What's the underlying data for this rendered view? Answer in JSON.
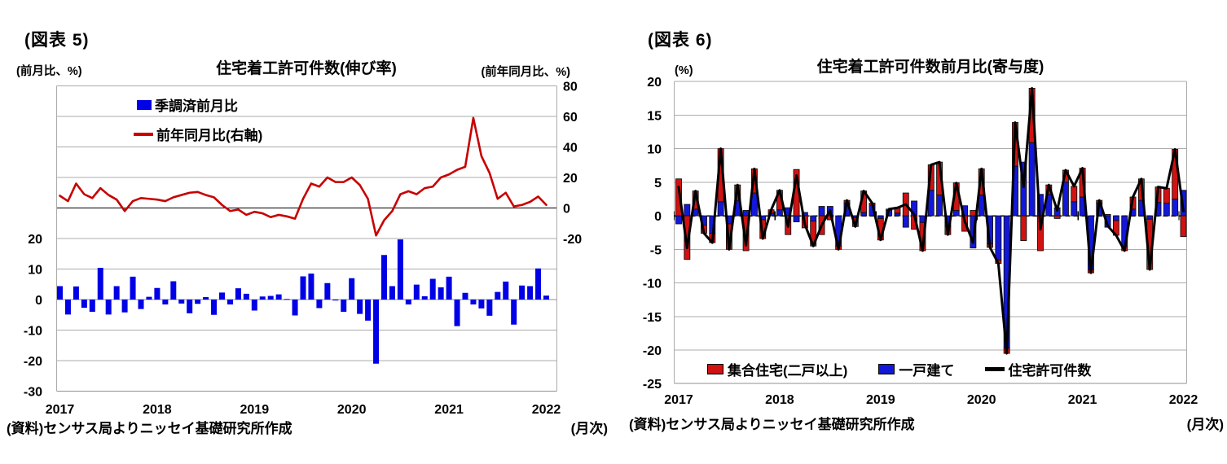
{
  "panels": {
    "fig5": {
      "tag": "(図表 5)",
      "axis_top_left": "(前月比、%)",
      "title": "住宅着工許可件数(伸び率)",
      "axis_top_right": "(前年同月比、%)",
      "legend": {
        "bar": "季調済前月比",
        "line": "前年同月比(右軸)"
      },
      "source": "(資料)センサス局よりニッセイ基礎研究所作成",
      "freq": "(月次)"
    },
    "fig6": {
      "tag": "(図表 6)",
      "axis_unit": "(%)",
      "title": "住宅着工許可件数前月比(寄与度)",
      "legend": {
        "multi": "集合住宅(二戸以上)",
        "single": "一戸建て",
        "total": "住宅許可件数"
      },
      "source": "(資料)センサス局よりニッセイ基礎研究所作成",
      "freq": "(月次)"
    }
  },
  "colors": {
    "bar_blue": "#0000E6",
    "line_red": "#C80000",
    "multi_red": "#D01212",
    "single_blue": "#1318D8",
    "line_black": "#000000",
    "grid": "#ABABAB",
    "grid_dark": "#909090"
  },
  "chart_data": [
    {
      "id": "fig5",
      "type": "bar+line",
      "title": "住宅着工許可件数(伸び率)",
      "x_monthly_range": "2017-01 to 2022-01",
      "years": [
        "2017",
        "2018",
        "2019",
        "2020",
        "2021",
        "2022"
      ],
      "left_axis": {
        "label": "(前月比、%)",
        "ticks": [
          20,
          10,
          0,
          -10,
          -20,
          -30
        ],
        "range": [
          -30,
          70
        ]
      },
      "right_axis": {
        "label": "(前年同月比、%)",
        "ticks": [
          80,
          60,
          40,
          20,
          0,
          -20
        ],
        "range": [
          -120,
          80
        ]
      },
      "series": [
        {
          "name": "季調済前月比",
          "type": "bar",
          "axis": "left",
          "color": "#0000E6",
          "values": [
            4.4,
            -4.9,
            4.3,
            -2.7,
            -4,
            10.4,
            -4.9,
            4.4,
            -4.2,
            7.5,
            -3.1,
            0.9,
            3.8,
            -1.6,
            6,
            -1.3,
            -4.5,
            -1.4,
            0.8,
            -5,
            2.3,
            -1.6,
            3.7,
            1.9,
            -3.6,
            1,
            1.2,
            1.7,
            0.2,
            -5.2,
            7.6,
            8.5,
            -2.8,
            5.4,
            -0.3,
            -4,
            7,
            -4.7,
            -6.9,
            -21,
            14.6,
            4.4,
            19.7,
            -1.6,
            4.9,
            1.1,
            6.8,
            4,
            7.5,
            -8.7,
            2.2,
            -1.6,
            -2.9,
            -5.3,
            2.5,
            5.9,
            -8.2,
            4.6,
            4.4,
            10.2,
            1.3
          ]
        },
        {
          "name": "前年同月比(右軸)",
          "type": "line",
          "axis": "right",
          "color": "#C80000",
          "values": [
            8,
            4.5,
            16,
            9,
            6.5,
            13,
            8.5,
            5.5,
            -2,
            4.5,
            6.5,
            6,
            5.5,
            4.5,
            7,
            8.5,
            10,
            10.5,
            8.5,
            7,
            2,
            -2,
            -1,
            -4.5,
            -2.5,
            -3.5,
            -6,
            -4.5,
            -5.5,
            -7,
            6,
            16,
            14,
            20,
            17,
            17,
            20,
            15,
            6,
            -18,
            -8,
            -2,
            9,
            11,
            9,
            13,
            14,
            20,
            22,
            25,
            27,
            59,
            34,
            23,
            6,
            10,
            1,
            2,
            4,
            7.5,
            2
          ]
        }
      ]
    },
    {
      "id": "fig6",
      "type": "stacked-bar+line",
      "title": "住宅着工許可件数前月比(寄与度)",
      "x_monthly_range": "2017-01 to 2022-01",
      "years": [
        "2017",
        "2018",
        "2019",
        "2020",
        "2021",
        "2022"
      ],
      "y_axis": {
        "label": "(%)",
        "ticks": [
          20,
          15,
          10,
          5,
          0,
          -5,
          -10,
          -15,
          -20,
          -25
        ],
        "range": [
          -25,
          20
        ]
      },
      "series": [
        {
          "name": "一戸建て",
          "type": "bar",
          "stack_order": 1,
          "color": "#1318D8",
          "values": [
            -1.2,
            1.7,
            1,
            -1.4,
            -2.6,
            2.1,
            -1.2,
            2.3,
            0.8,
            3.4,
            -0.6,
            0.4,
            0.9,
            1.2,
            -0.9,
            0.5,
            -0.8,
            1.4,
            1.4,
            -4.5,
            1.9,
            -0.3,
            0.5,
            1.6,
            -0.4,
            0.8,
            0.4,
            -1.7,
            2.2,
            -1,
            3.8,
            3.1,
            -1.6,
            0.8,
            1.5,
            -4.8,
            3.1,
            -4.2,
            -6.6,
            -19.7,
            7.4,
            8,
            10.9,
            3.2,
            3.2,
            1.2,
            5,
            2.1,
            2.8,
            -8,
            1.9,
            -1.7,
            -0.7,
            -4.6,
            1,
            2.3,
            -0.5,
            2,
            1.9,
            2.5,
            3.8
          ]
        },
        {
          "name": "集合住宅(二戸以上)",
          "type": "bar",
          "stack_order": 2,
          "color": "#D01212",
          "values": [
            5.5,
            -6.5,
            2.7,
            -1.2,
            -1.4,
            7.9,
            -3.8,
            2.3,
            -5.2,
            3.6,
            -2.8,
            0.5,
            2.9,
            -2.8,
            6.9,
            -1.8,
            -3.7,
            -2.8,
            -0.6,
            -0.5,
            0.4,
            -1.3,
            3.2,
            0.3,
            -3.2,
            0.2,
            0.8,
            3.4,
            -2,
            -4.2,
            3.8,
            4.9,
            -1.2,
            4.1,
            -2.3,
            0.8,
            3.9,
            -0.5,
            -0.5,
            -0.8,
            6.5,
            -3.7,
            8.1,
            -5.2,
            1.4,
            -0.4,
            1.8,
            2.3,
            4.3,
            -0.5,
            0.4,
            0.2,
            -2.2,
            -0.6,
            1.8,
            3.2,
            -7.5,
            2.3,
            2.2,
            7.4,
            -3.1
          ]
        },
        {
          "name": "住宅許可件数",
          "type": "line",
          "color": "#000000",
          "values": [
            4.3,
            -4.8,
            3.7,
            -2.6,
            -4,
            10,
            -5,
            4.6,
            -4.4,
            7,
            -3.4,
            0.9,
            3.8,
            -1.6,
            6,
            -1.3,
            -4.5,
            -1.4,
            0.8,
            -5,
            2.3,
            -1.6,
            3.7,
            1.9,
            -3.6,
            1,
            1.2,
            1.7,
            0.2,
            -5.2,
            7.6,
            8,
            -2.8,
            4.9,
            -0.8,
            -4,
            7,
            -4.7,
            -7.1,
            -20.5,
            13.9,
            4.3,
            19,
            -2,
            4.6,
            0.8,
            6.8,
            4.4,
            7.1,
            -8.5,
            2.3,
            -1.5,
            -2.9,
            -5.2,
            2.8,
            5.5,
            -8,
            4.3,
            4.1,
            9.9,
            0.7
          ]
        }
      ]
    }
  ]
}
